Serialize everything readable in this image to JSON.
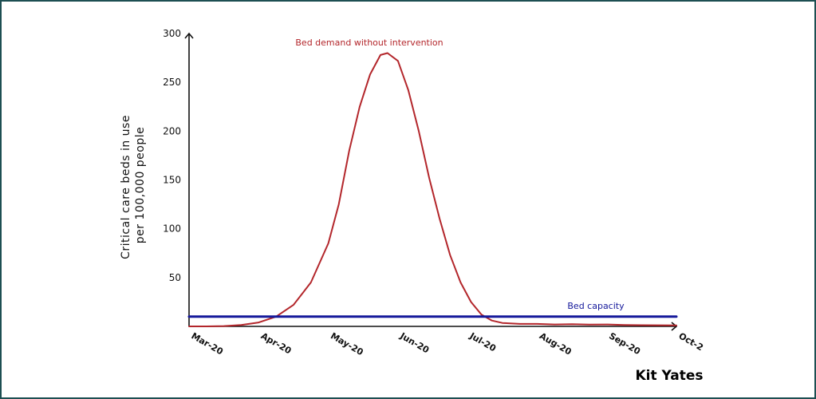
{
  "chart_data": {
    "type": "line",
    "x": [
      "Mar-20",
      "Apr-20",
      "May-20",
      "Jun-20",
      "Jul-20",
      "Aug-20",
      "Sep-20",
      "Oct-2"
    ],
    "yticks": [
      50,
      100,
      150,
      200,
      250,
      300
    ],
    "ylim": [
      0,
      300
    ],
    "ylabel_lines": [
      "Critical care beds in use",
      "per 100,000 people"
    ],
    "xlabel": "",
    "grid": false,
    "series": [
      {
        "name": "Bed demand without intervention",
        "color": "#b3262b",
        "points": [
          [
            0,
            0
          ],
          [
            0.25,
            0
          ],
          [
            0.5,
            0.3
          ],
          [
            0.75,
            1.5
          ],
          [
            1.0,
            4
          ],
          [
            1.25,
            10
          ],
          [
            1.5,
            22
          ],
          [
            1.75,
            45
          ],
          [
            2.0,
            85
          ],
          [
            2.15,
            125
          ],
          [
            2.3,
            180
          ],
          [
            2.45,
            225
          ],
          [
            2.6,
            258
          ],
          [
            2.75,
            278
          ],
          [
            2.85,
            280
          ],
          [
            3.0,
            272
          ],
          [
            3.15,
            242
          ],
          [
            3.3,
            200
          ],
          [
            3.45,
            152
          ],
          [
            3.6,
            110
          ],
          [
            3.75,
            73
          ],
          [
            3.9,
            45
          ],
          [
            4.05,
            25
          ],
          [
            4.2,
            12
          ],
          [
            4.35,
            6
          ],
          [
            4.5,
            3.5
          ],
          [
            4.75,
            2.5
          ],
          [
            5.0,
            2.5
          ],
          [
            5.25,
            2
          ],
          [
            5.5,
            2.3
          ],
          [
            5.75,
            1.8
          ],
          [
            6.0,
            2
          ],
          [
            6.25,
            1.5
          ],
          [
            6.5,
            1.2
          ],
          [
            7.0,
            1
          ]
        ]
      },
      {
        "name": "Bed capacity",
        "color": "#13179a",
        "points": [
          [
            0,
            10
          ],
          [
            7.0,
            10
          ]
        ]
      }
    ]
  },
  "credit": "Kit Yates"
}
